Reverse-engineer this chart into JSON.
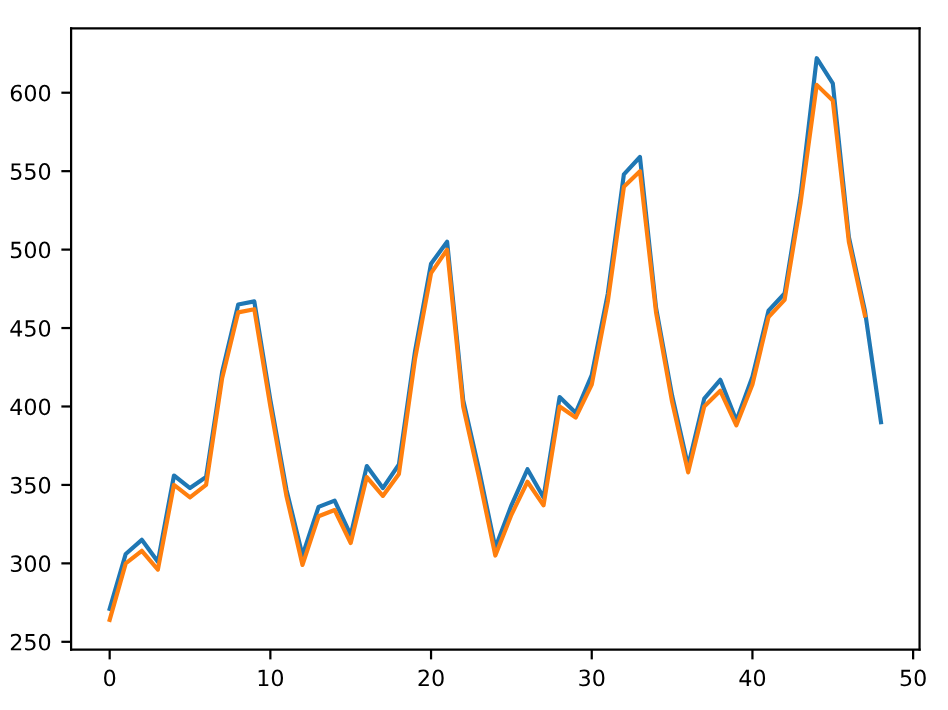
{
  "chart_data": {
    "type": "line",
    "x": [
      0,
      1,
      2,
      3,
      4,
      5,
      6,
      7,
      8,
      9,
      10,
      11,
      12,
      13,
      14,
      15,
      16,
      17,
      18,
      19,
      20,
      21,
      22,
      23,
      24,
      25,
      26,
      27,
      28,
      29,
      30,
      31,
      32,
      33,
      34,
      35,
      36,
      37,
      38,
      39,
      40,
      41,
      42,
      43,
      44,
      45,
      46,
      47,
      48
    ],
    "series": [
      {
        "color": "#1f77b4",
        "values": [
          271,
          306,
          315,
          301,
          356,
          348,
          355,
          422,
          465,
          467,
          404,
          347,
          305,
          336,
          340,
          318,
          362,
          348,
          363,
          435,
          491,
          505,
          404,
          359,
          310,
          337,
          360,
          342,
          406,
          396,
          420,
          472,
          548,
          559,
          463,
          407,
          362,
          405,
          417,
          391,
          419,
          461,
          472,
          535,
          622,
          606,
          508,
          461,
          390
        ]
      },
      {
        "color": "#ff7f0e",
        "x": [
          0,
          1,
          2,
          3,
          4,
          5,
          6,
          7,
          8,
          9,
          10,
          11,
          12,
          13,
          14,
          15,
          16,
          17,
          18,
          19,
          20,
          21,
          22,
          23,
          24,
          25,
          26,
          27,
          28,
          29,
          30,
          31,
          32,
          33,
          34,
          35,
          36,
          37,
          38,
          39,
          40,
          41,
          42,
          43,
          44,
          45,
          46,
          47
        ],
        "values": [
          264,
          300,
          308,
          296,
          350,
          342,
          350,
          418,
          460,
          462,
          400,
          343,
          299,
          330,
          334,
          313,
          355,
          343,
          357,
          430,
          485,
          500,
          400,
          354,
          305,
          331,
          352,
          337,
          400,
          393,
          414,
          467,
          540,
          550,
          460,
          403,
          358,
          400,
          410,
          388,
          414,
          457,
          468,
          530,
          605,
          595,
          505,
          458
        ]
      }
    ],
    "xlim": [
      -2.4,
      50.4
    ],
    "ylim": [
      245,
      641
    ],
    "xticks": [
      0,
      10,
      20,
      30,
      40,
      50
    ],
    "yticks": [
      250,
      300,
      350,
      400,
      450,
      500,
      550,
      600
    ],
    "grid": false
  }
}
